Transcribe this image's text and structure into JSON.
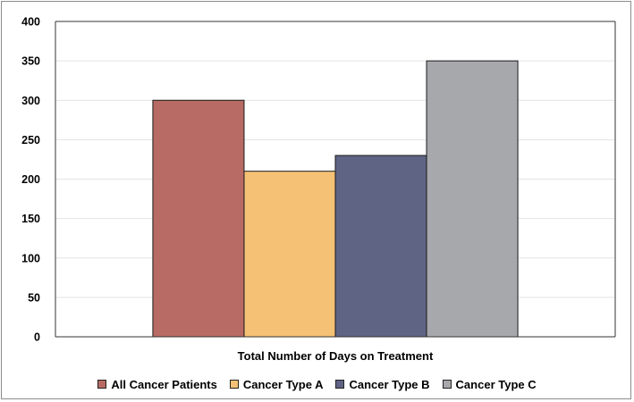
{
  "chart_data": {
    "type": "bar",
    "title": "",
    "xlabel": "Total Number of Days on Treatment",
    "ylabel": "",
    "ylim": [
      0,
      400
    ],
    "yticks": [
      "0",
      "50",
      "100",
      "150",
      "200",
      "250",
      "300",
      "350",
      "400"
    ],
    "grid": true,
    "legend_position": "bottom",
    "categories": [
      "Total Number of Days on Treatment"
    ],
    "series": [
      {
        "name": "All Cancer Patients",
        "values": [
          300
        ],
        "color": "#b86a64"
      },
      {
        "name": "Cancer Type A",
        "values": [
          210
        ],
        "color": "#f4c175"
      },
      {
        "name": "Cancer Type B",
        "values": [
          230
        ],
        "color": "#5f6485"
      },
      {
        "name": "Cancer Type C",
        "values": [
          350
        ],
        "color": "#a7a8ac"
      }
    ]
  }
}
